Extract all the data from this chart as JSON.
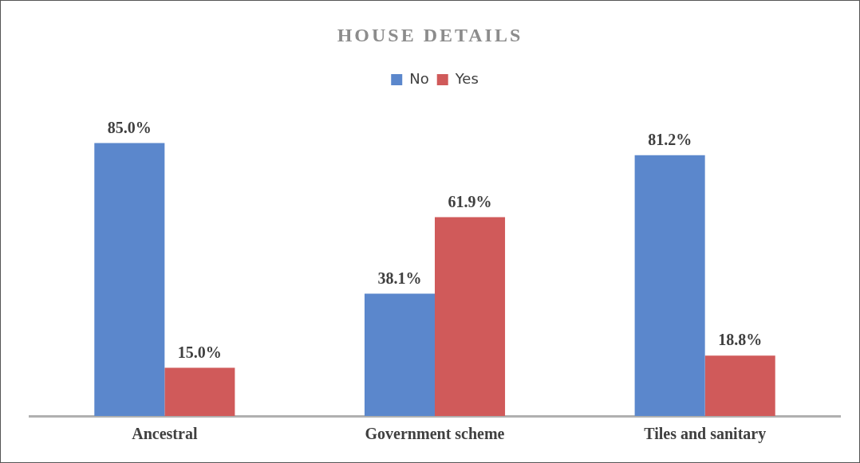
{
  "chart_data": {
    "type": "bar",
    "title": "HOUSE DETAILS",
    "categories": [
      "Ancestral",
      "Government scheme",
      "Tiles and sanitary"
    ],
    "series": [
      {
        "name": "No",
        "color": "#5b87cc",
        "values": [
          85.0,
          38.1,
          81.2
        ],
        "value_labels": [
          "85.0%",
          "38.1%",
          "81.2%"
        ]
      },
      {
        "name": "Yes",
        "color": "#d05a5a",
        "values": [
          15.0,
          61.9,
          18.8
        ],
        "value_labels": [
          "15.0%",
          "61.9%",
          "18.8%"
        ]
      }
    ],
    "legend": "top",
    "grid": false
  }
}
